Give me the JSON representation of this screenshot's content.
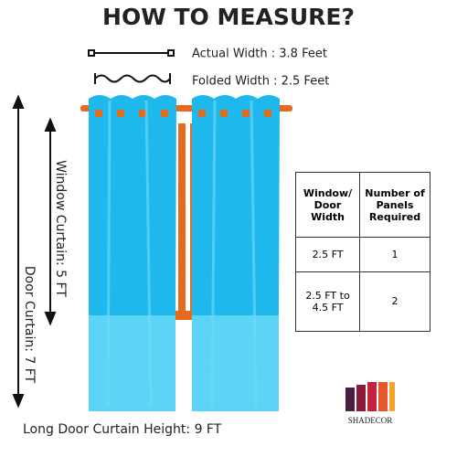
{
  "title": "HOW TO MEASURE?",
  "measures": {
    "actual_width": "Actual Width : 3.8 Feet",
    "folded_width": "Folded Width : 2.5 Feet",
    "window_curtain": "Window Curtain: 5 FT",
    "door_curtain": "Door Curtain: 7 FT",
    "long_door": "Long Door Curtain Height: 9 FT"
  },
  "table": {
    "header": [
      "Window/ Door Width",
      "Number of Panels Required"
    ],
    "rows": [
      [
        "2.5 FT",
        "1"
      ],
      [
        "2.5 FT to 4.5 FT",
        "2"
      ]
    ]
  },
  "brand": "SHADECOR"
}
